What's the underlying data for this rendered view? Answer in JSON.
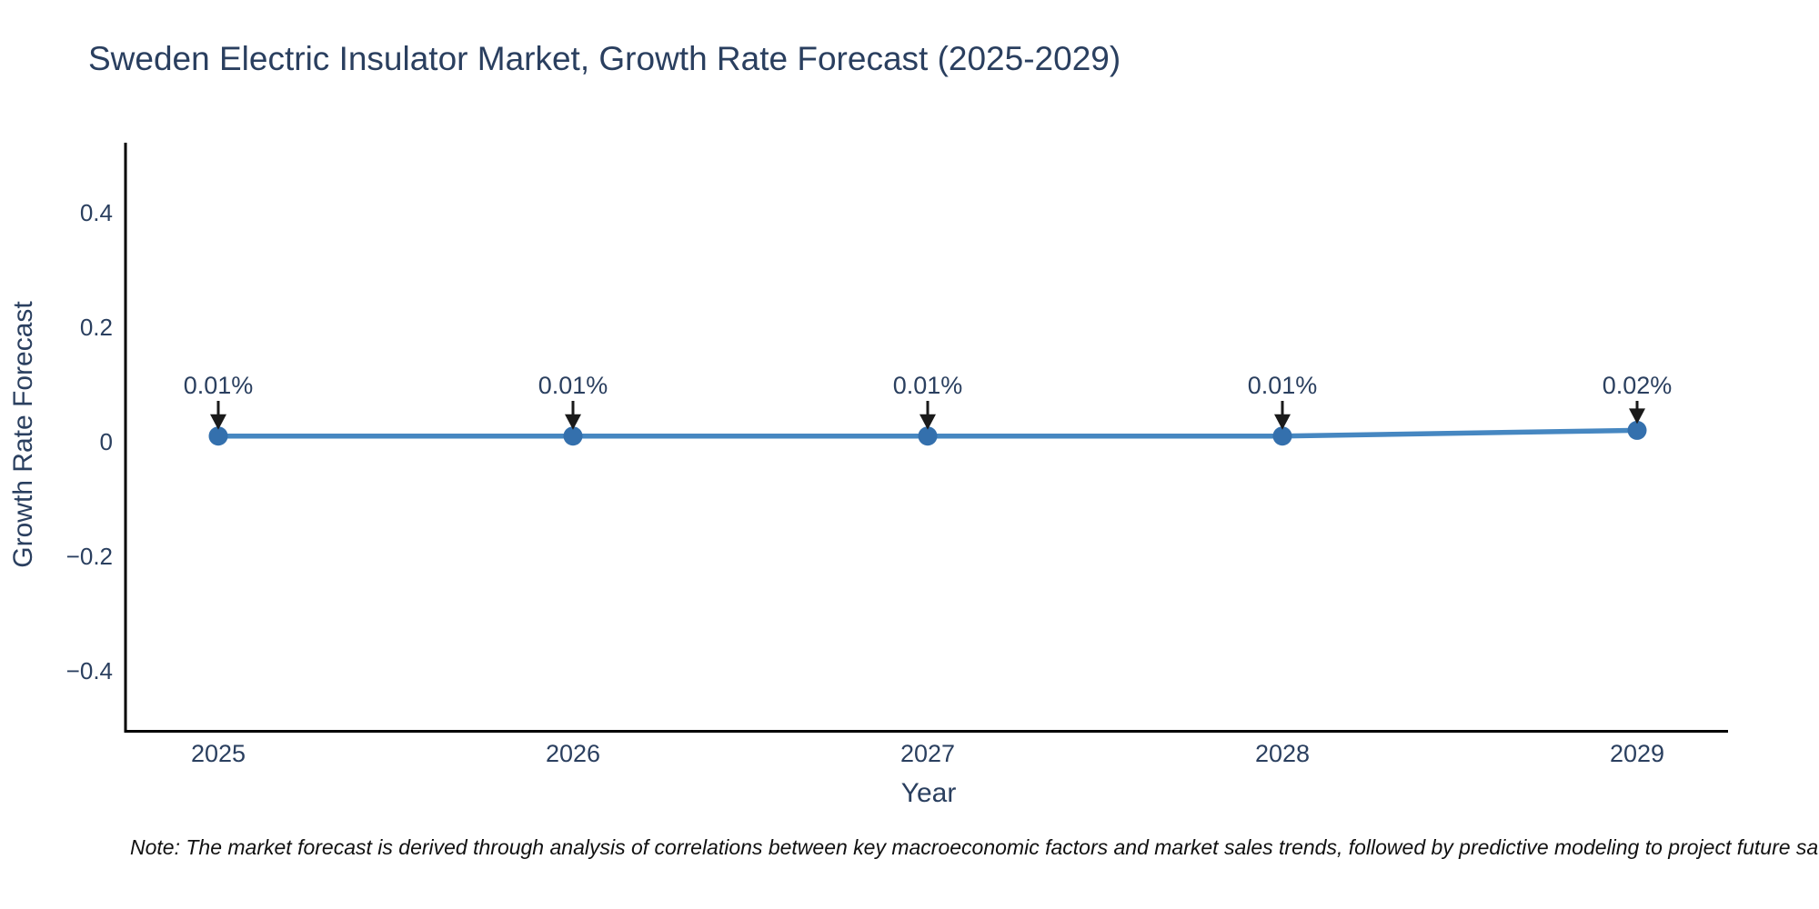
{
  "title": "Sweden Electric Insulator Market, Growth Rate Forecast (2025-2029)",
  "note": "Note: The market forecast is derived through analysis of correlations between key macroeconomic factors and market sales trends, followed by predictive modeling to project future sa",
  "colors": {
    "text": "#2a3f5f",
    "axis_line": "#000000",
    "series_line": "#4687c1",
    "marker": "#3470ad",
    "arrow": "#1a1a1a",
    "note_text": "#111111"
  },
  "chart_data": {
    "type": "line",
    "title": "Sweden Electric Insulator Market, Growth Rate Forecast (2025-2029)",
    "xlabel": "Year",
    "ylabel": "Growth Rate Forecast",
    "x": [
      2025,
      2026,
      2027,
      2028,
      2029
    ],
    "x_tick_labels": [
      "2025",
      "2026",
      "2027",
      "2028",
      "2029"
    ],
    "values": [
      0.01,
      0.01,
      0.01,
      0.01,
      0.02
    ],
    "point_labels": [
      "0.01%",
      "0.01%",
      "0.01%",
      "0.01%",
      "0.02%"
    ],
    "yticks": [
      0.4,
      0.2,
      0,
      -0.2,
      -0.4
    ],
    "y_tick_labels": [
      "0.4",
      "0.2",
      "0",
      "−0.2",
      "−0.4"
    ],
    "ylim": [
      -0.5,
      0.52
    ],
    "grid": false,
    "legend": "none",
    "annotation_style": "value label with down arrow to each point",
    "marker_style": "filled circle",
    "series_name": "Growth Rate Forecast"
  }
}
